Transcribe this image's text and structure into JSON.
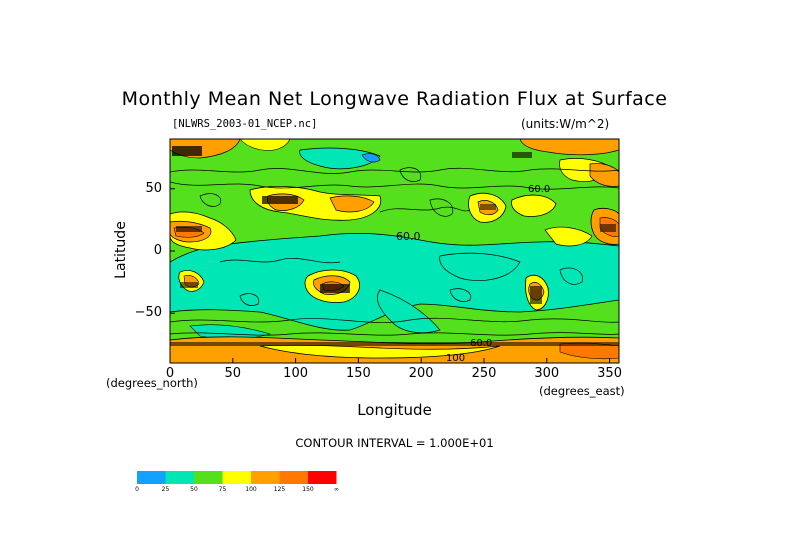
{
  "chart_data": {
    "type": "heatmap",
    "title": "Monthly Mean Net Longwave Radiation Flux at Surface",
    "file_label": "[NLWRS_2003-01_NCEP.nc]",
    "units_label": "(units:W/m^2)",
    "xlabel": "Longitude",
    "ylabel": "Latitude",
    "x_units": "(degrees_east)",
    "y_units": "(degrees_north)",
    "xlim": [
      0,
      357.5
    ],
    "ylim": [
      -90,
      90
    ],
    "x_ticks": [
      "0",
      "50",
      "100",
      "150",
      "200",
      "250",
      "300",
      "350"
    ],
    "y_ticks": [
      "50",
      "0",
      "-50"
    ],
    "contour_interval_text": "CONTOUR INTERVAL = 1.000E+01",
    "contour_labels": [
      "60.0",
      "60.0",
      "60.0",
      "100"
    ],
    "colorbar": {
      "ticks": [
        "0",
        "25",
        "50",
        "75",
        "100",
        "125",
        "150",
        "∞"
      ],
      "colors": [
        "#14a0ff",
        "#00e6b4",
        "#55e01e",
        "#ffff00",
        "#ffa000",
        "#ff7800",
        "#ff0000"
      ]
    },
    "grid": false,
    "legend": "colorbar-bottom-left"
  }
}
